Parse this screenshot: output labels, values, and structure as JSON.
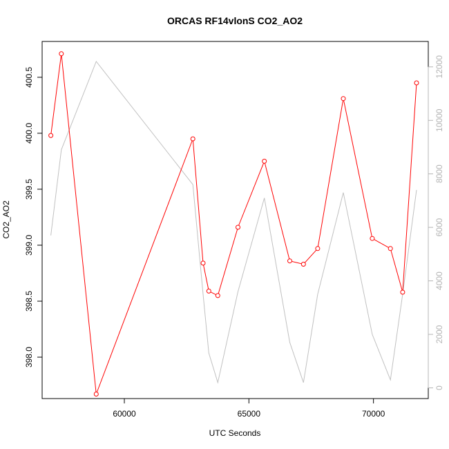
{
  "chart_data": {
    "type": "line",
    "title": "ORCAS RF14vlonS CO2_AO2",
    "xlabel": "UTC Seconds",
    "ylabel": "CO2_AO2",
    "xlim": [
      56700,
      72200
    ],
    "ylim": [
      397.63,
      400.82
    ],
    "y2lim": [
      -400,
      12950
    ],
    "x_ticks": [
      60000,
      65000,
      70000
    ],
    "x_tick_labels": [
      "60000",
      "65000",
      "70000"
    ],
    "y_ticks": [
      398.0,
      398.5,
      399.0,
      399.5,
      400.0,
      400.5
    ],
    "y_tick_labels": [
      "398.0",
      "398.5",
      "399.0",
      "399.5",
      "400.0",
      "400.5"
    ],
    "y2_ticks": [
      0,
      2000,
      4000,
      6000,
      8000,
      10000,
      12000
    ],
    "y2_tick_labels": [
      "0",
      "2000",
      "4000",
      "6000",
      "8000",
      "10000",
      "12000"
    ],
    "grid": false,
    "series": [
      {
        "axis": "left",
        "color": "#ff0000",
        "markers": "open-circle",
        "x": [
          57050,
          57470,
          58870,
          62750,
          63160,
          63390,
          63750,
          64560,
          65620,
          66640,
          67190,
          67760,
          68790,
          69950,
          70680,
          71170,
          71730
        ],
        "y": [
          399.98,
          400.71,
          397.67,
          399.95,
          398.84,
          398.59,
          398.55,
          399.16,
          399.75,
          398.86,
          398.83,
          398.97,
          400.31,
          399.06,
          398.97,
          398.58,
          400.45
        ]
      },
      {
        "axis": "right",
        "color": "#c0c0c0",
        "markers": "none",
        "x": [
          57050,
          57470,
          58870,
          62750,
          63160,
          63390,
          63750,
          64560,
          65620,
          66640,
          67190,
          67760,
          68790,
          69950,
          70680,
          71170,
          71730
        ],
        "y": [
          5700,
          8900,
          12200,
          7600,
          3500,
          1300,
          200,
          3600,
          7100,
          1700,
          200,
          3500,
          7300,
          2000,
          300,
          3500,
          7400
        ]
      }
    ]
  }
}
